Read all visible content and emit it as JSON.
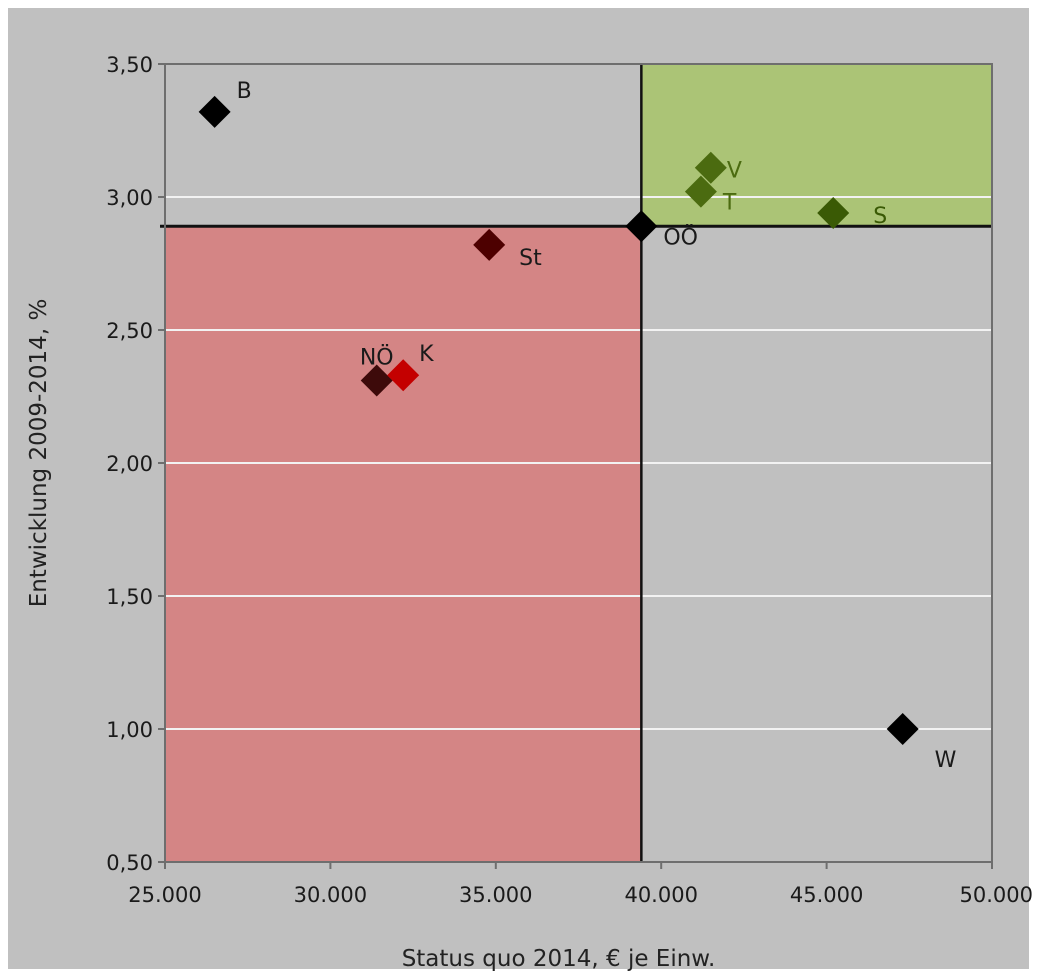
{
  "chart_data": {
    "type": "scatter",
    "title": "",
    "xlabel": "Status quo 2014, € je Einw.",
    "ylabel": "Entwicklung 2009-2014, %",
    "xlim": [
      25000,
      50000
    ],
    "ylim": [
      0.5,
      3.5
    ],
    "x_ticks": [
      25000,
      30000,
      35000,
      40000,
      45000,
      50000
    ],
    "x_tick_labels": [
      "25.000",
      "30.000",
      "35.000",
      "40.000",
      "45.000",
      "50.000"
    ],
    "y_ticks": [
      0.5,
      1.0,
      1.5,
      2.0,
      2.5,
      3.0,
      3.5
    ],
    "y_tick_labels": [
      "0,50",
      "1,00",
      "1,50",
      "2,00",
      "2,50",
      "3,00",
      "3,50"
    ],
    "grid": "horizontal",
    "reference_lines": {
      "x": 39400,
      "y": 2.89
    },
    "regions": [
      {
        "name": "below-below",
        "x": [
          25000,
          39400
        ],
        "y": [
          0.5,
          2.89
        ],
        "color": "#d48585"
      },
      {
        "name": "above-above",
        "x": [
          39400,
          50000
        ],
        "y": [
          2.89,
          3.5
        ],
        "color": "#abc476"
      }
    ],
    "colors": {
      "background": "#c0c0c0",
      "plot_background": "#c0c0c0",
      "gridline": "#f2f2f2",
      "reference_line": "#111111",
      "axis_frame": "#6e6e6e"
    },
    "points": [
      {
        "label": "B",
        "x": 26500,
        "y": 3.32,
        "color": "#000000",
        "label_color": "#1a1a1a"
      },
      {
        "label": "V",
        "x": 41500,
        "y": 3.11,
        "color": "#4b6b10",
        "label_color": "#4b6b10"
      },
      {
        "label": "T",
        "x": 41200,
        "y": 3.02,
        "color": "#4b6b10",
        "label_color": "#4b6b10"
      },
      {
        "label": "S",
        "x": 45200,
        "y": 2.94,
        "color": "#3a5a05",
        "label_color": "#3a5a05"
      },
      {
        "label": "OÖ",
        "x": 39400,
        "y": 2.89,
        "color": "#000000",
        "label_color": "#1a1a1a"
      },
      {
        "label": "St",
        "x": 34800,
        "y": 2.82,
        "color": "#4d0000",
        "label_color": "#1a1a1a"
      },
      {
        "label": "NÖ",
        "x": 31400,
        "y": 2.31,
        "color": "#3d0a0a",
        "label_color": "#1a1a1a"
      },
      {
        "label": "K",
        "x": 32200,
        "y": 2.33,
        "color": "#c40000",
        "label_color": "#1a1a1a"
      },
      {
        "label": "W",
        "x": 47300,
        "y": 1.0,
        "color": "#000000",
        "label_color": "#1a1a1a"
      }
    ]
  }
}
